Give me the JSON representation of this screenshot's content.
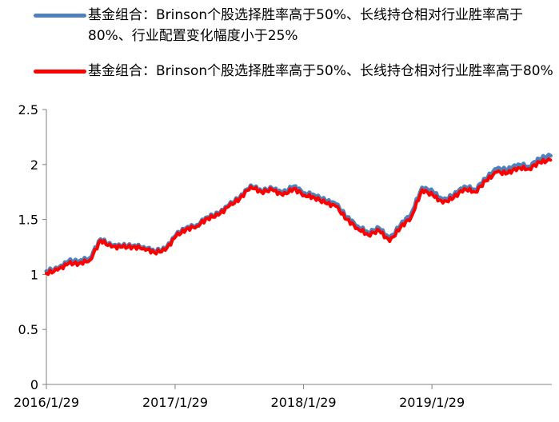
{
  "chart_data": {
    "type": "line",
    "title": "",
    "xlabel": "",
    "ylabel": "",
    "ylim": [
      0,
      2.5
    ],
    "yticks": [
      "0",
      "0.5",
      "1",
      "1.5",
      "2",
      "2.5"
    ],
    "xticks": [
      "2016/1/29",
      "2017/1/29",
      "2018/1/29",
      "2019/1/29"
    ],
    "grid": false,
    "legend_position": "top",
    "x": [
      "2016/1/29",
      "2016/3/1",
      "2016/4/1",
      "2016/5/1",
      "2016/6/1",
      "2016/7/1",
      "2016/8/1",
      "2016/9/1",
      "2016/10/1",
      "2016/11/1",
      "2016/12/1",
      "2017/1/1",
      "2017/2/1",
      "2017/3/1",
      "2017/4/1",
      "2017/5/1",
      "2017/6/1",
      "2017/7/1",
      "2017/8/1",
      "2017/9/1",
      "2017/10/1",
      "2017/11/1",
      "2017/12/1",
      "2018/1/1",
      "2018/2/1",
      "2018/3/1",
      "2018/4/1",
      "2018/5/1",
      "2018/6/1",
      "2018/7/1",
      "2018/8/1",
      "2018/9/1",
      "2018/10/1",
      "2018/11/1",
      "2018/12/1",
      "2019/1/1",
      "2019/2/1",
      "2019/3/1",
      "2019/4/1",
      "2019/5/1",
      "2019/6/1",
      "2019/7/1",
      "2019/8/1",
      "2019/9/1",
      "2019/10/1",
      "2019/11/1",
      "2019/12/1",
      "2020/1/1"
    ],
    "series": [
      {
        "name": "基金组合：Brinson个股选择胜率高于50%、长线持仓相对行业胜率高于80%、行业配置变化幅度小于25%",
        "color": "#4f81bd",
        "values": [
          1.03,
          1.05,
          1.12,
          1.12,
          1.15,
          1.32,
          1.26,
          1.26,
          1.26,
          1.25,
          1.21,
          1.23,
          1.36,
          1.42,
          1.45,
          1.52,
          1.55,
          1.63,
          1.7,
          1.81,
          1.76,
          1.78,
          1.74,
          1.8,
          1.74,
          1.72,
          1.67,
          1.64,
          1.52,
          1.44,
          1.38,
          1.42,
          1.32,
          1.45,
          1.55,
          1.79,
          1.75,
          1.67,
          1.72,
          1.8,
          1.77,
          1.87,
          1.96,
          1.95,
          2.0,
          1.98,
          2.05,
          2.08
        ]
      },
      {
        "name": "基金组合：Brinson个股选择胜率高于50%、长线持仓相对行业胜率高于80%",
        "color": "#ff0000",
        "values": [
          1.01,
          1.04,
          1.1,
          1.1,
          1.13,
          1.31,
          1.25,
          1.25,
          1.25,
          1.24,
          1.2,
          1.22,
          1.35,
          1.41,
          1.44,
          1.51,
          1.54,
          1.62,
          1.69,
          1.8,
          1.75,
          1.77,
          1.72,
          1.78,
          1.72,
          1.7,
          1.65,
          1.62,
          1.5,
          1.42,
          1.36,
          1.4,
          1.3,
          1.43,
          1.52,
          1.77,
          1.72,
          1.65,
          1.7,
          1.78,
          1.75,
          1.85,
          1.93,
          1.92,
          1.97,
          1.96,
          2.02,
          2.04
        ]
      }
    ]
  }
}
